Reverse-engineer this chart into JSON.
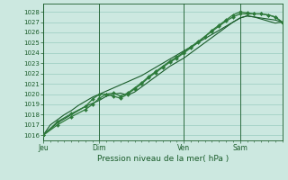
{
  "background_color": "#cce8e0",
  "grid_color": "#99ccbf",
  "line_color_dark": "#1a5c2a",
  "line_color_mid": "#2d7a3a",
  "title": "Pression niveau de la mer( hPa )",
  "ylim": [
    1015.5,
    1028.8
  ],
  "yticks": [
    1016,
    1017,
    1018,
    1019,
    1020,
    1021,
    1022,
    1023,
    1024,
    1025,
    1026,
    1027,
    1028
  ],
  "xtick_labels": [
    "Jeu",
    "Dim",
    "Ven",
    "Sam"
  ],
  "xtick_positions": [
    0,
    32,
    80,
    112
  ],
  "total_hours": 136,
  "series1_no_marker": {
    "x": [
      0,
      2,
      4,
      8,
      12,
      16,
      20,
      24,
      28,
      32,
      36,
      40,
      44,
      48,
      52,
      56,
      60,
      64,
      68,
      72,
      76,
      80,
      84,
      88,
      92,
      96,
      100,
      104,
      108,
      112,
      116,
      120,
      124,
      128,
      132,
      136
    ],
    "y": [
      1016.0,
      1016.5,
      1017.0,
      1017.5,
      1018.0,
      1018.4,
      1018.9,
      1019.3,
      1019.7,
      1020.0,
      1020.3,
      1020.6,
      1020.9,
      1021.2,
      1021.5,
      1021.8,
      1022.2,
      1022.6,
      1023.0,
      1023.4,
      1023.8,
      1024.2,
      1024.6,
      1025.0,
      1025.4,
      1025.8,
      1026.2,
      1026.6,
      1027.0,
      1027.4,
      1027.6,
      1027.5,
      1027.3,
      1027.1,
      1026.9,
      1027.0
    ]
  },
  "series2_no_marker": {
    "x": [
      0,
      8,
      16,
      24,
      32,
      36,
      40,
      44,
      48,
      52,
      56,
      60,
      64,
      68,
      72,
      76,
      80,
      84,
      88,
      92,
      96,
      100,
      104,
      108,
      112,
      116,
      120,
      124,
      128,
      132,
      136
    ],
    "y": [
      1016.0,
      1017.2,
      1018.0,
      1018.8,
      1019.4,
      1019.8,
      1020.0,
      1020.1,
      1019.9,
      1020.2,
      1020.7,
      1021.2,
      1021.7,
      1022.2,
      1022.7,
      1023.1,
      1023.5,
      1024.0,
      1024.5,
      1025.0,
      1025.5,
      1026.0,
      1026.5,
      1027.0,
      1027.4,
      1027.6,
      1027.5,
      1027.4,
      1027.3,
      1027.2,
      1027.0
    ]
  },
  "series3_marker": {
    "x": [
      0,
      8,
      16,
      24,
      28,
      32,
      36,
      40,
      44,
      48,
      52,
      56,
      60,
      64,
      68,
      72,
      76,
      80,
      84,
      88,
      92,
      96,
      100,
      104,
      108,
      112,
      116,
      120,
      124,
      128,
      132,
      136
    ],
    "y": [
      1016.0,
      1017.3,
      1018.1,
      1018.8,
      1019.5,
      1020.0,
      1020.0,
      1019.8,
      1019.6,
      1020.0,
      1020.5,
      1021.0,
      1021.6,
      1022.1,
      1022.6,
      1023.1,
      1023.5,
      1024.0,
      1024.5,
      1025.0,
      1025.6,
      1026.2,
      1026.7,
      1027.2,
      1027.7,
      1028.0,
      1027.9,
      1027.8,
      1027.8,
      1027.7,
      1027.5,
      1027.0
    ]
  },
  "series4_marker": {
    "x": [
      0,
      8,
      16,
      24,
      28,
      32,
      36,
      40,
      44,
      48,
      52,
      56,
      60,
      64,
      68,
      72,
      76,
      80,
      84,
      88,
      92,
      96,
      100,
      104,
      108,
      112,
      116,
      120,
      124,
      128,
      132,
      136
    ],
    "y": [
      1016.0,
      1017.0,
      1017.8,
      1018.5,
      1019.0,
      1019.6,
      1020.0,
      1020.1,
      1019.8,
      1020.1,
      1020.6,
      1021.1,
      1021.7,
      1022.2,
      1022.7,
      1023.2,
      1023.6,
      1024.1,
      1024.6,
      1025.1,
      1025.6,
      1026.1,
      1026.6,
      1027.1,
      1027.5,
      1027.8,
      1027.8,
      1027.8,
      1027.8,
      1027.7,
      1027.5,
      1027.0
    ]
  }
}
